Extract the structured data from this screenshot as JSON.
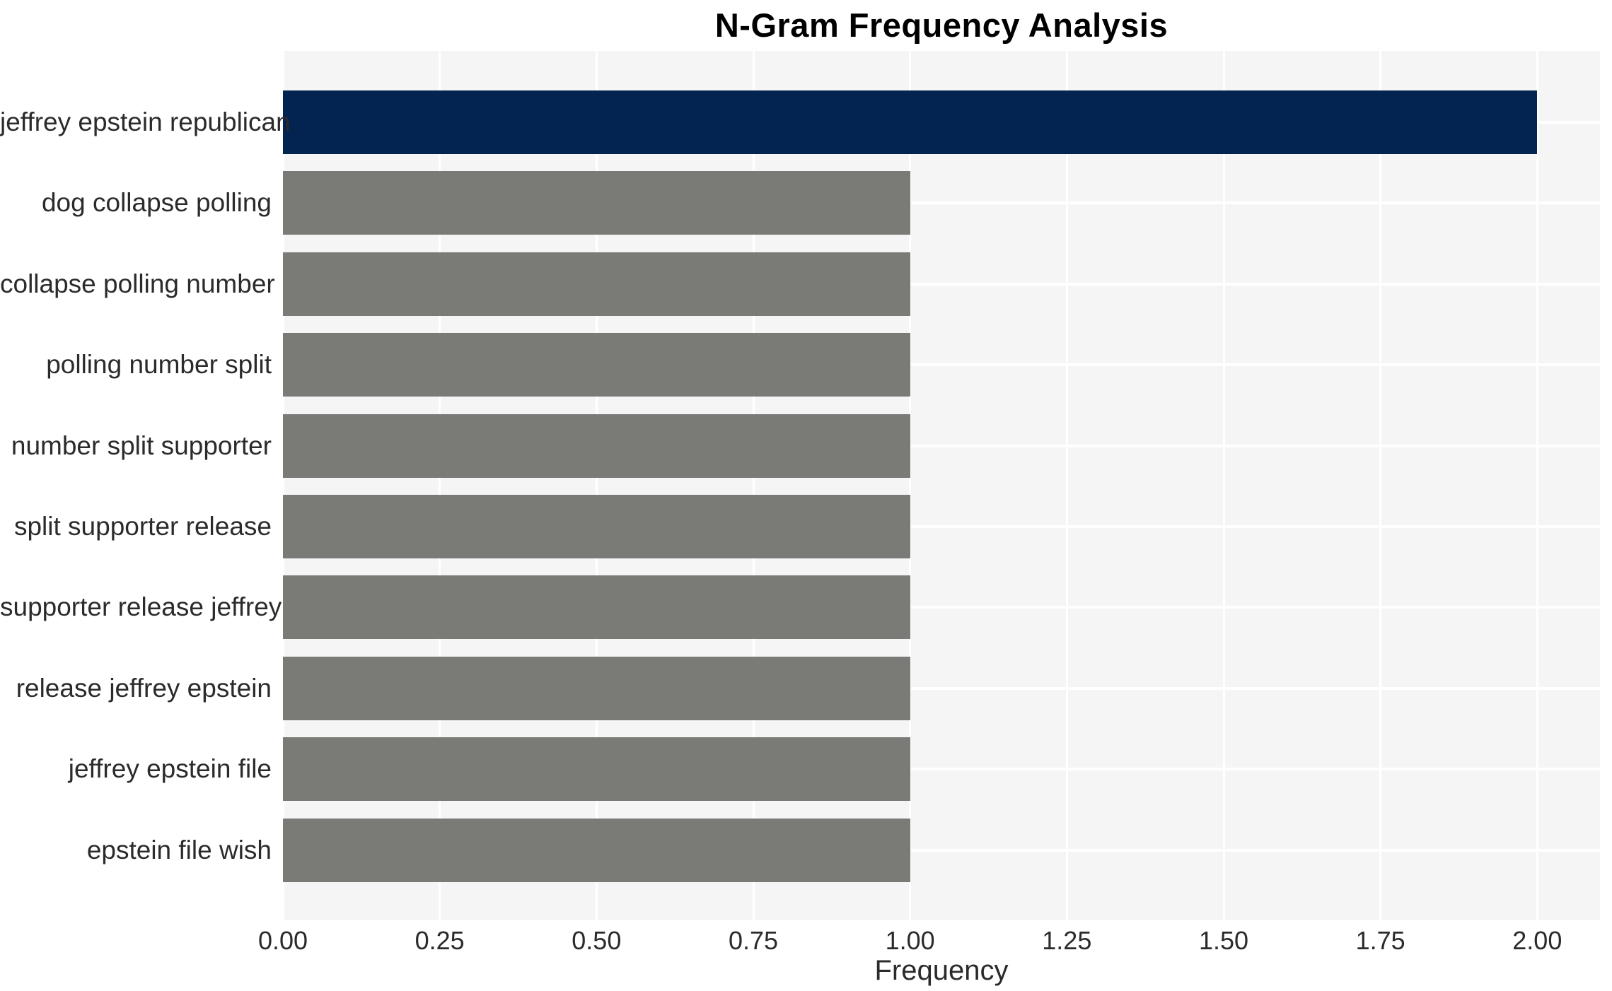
{
  "chart_data": {
    "type": "bar",
    "orientation": "horizontal",
    "title": "N-Gram Frequency Analysis",
    "xlabel": "Frequency",
    "ylabel": "",
    "categories": [
      "jeffrey epstein republican",
      "dog collapse polling",
      "collapse polling number",
      "polling number split",
      "number split supporter",
      "split supporter release",
      "supporter release jeffrey",
      "release jeffrey epstein",
      "jeffrey epstein file",
      "epstein file wish"
    ],
    "values": [
      2,
      1,
      1,
      1,
      1,
      1,
      1,
      1,
      1,
      1
    ],
    "xticks": [
      "0.00",
      "0.25",
      "0.50",
      "0.75",
      "1.00",
      "1.25",
      "1.50",
      "1.75",
      "2.00"
    ],
    "xtick_values": [
      0,
      0.25,
      0.5,
      0.75,
      1.0,
      1.25,
      1.5,
      1.75,
      2.0
    ],
    "xlim": [
      0,
      2.1
    ],
    "grid": "on",
    "legend": "none",
    "colors": {
      "highlight_bar": "#032450",
      "default_bar": "#7a7a77",
      "plot_background": "#f5f5f6",
      "gridline": "#ffffff",
      "title_text": "#000000",
      "axis_text": "#2b2b2b"
    }
  }
}
